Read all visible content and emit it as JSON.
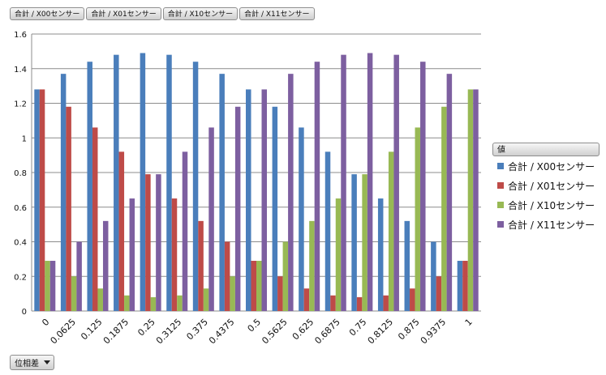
{
  "field_buttons": [
    "合計 / X00センサー",
    "合計 / X01センサー",
    "合計 / X10センサー",
    "合計 / X11センサー"
  ],
  "axis_field_button": "位相差",
  "legend": {
    "title": "値"
  },
  "colors": {
    "X00": "#4a7ebb",
    "X01": "#be4b48",
    "X10": "#98b954",
    "X11": "#7d5fa0"
  },
  "chart_data": {
    "type": "bar",
    "categories": [
      "0",
      "0.0625",
      "0.125",
      "0.1875",
      "0.25",
      "0.3125",
      "0.375",
      "0.4375",
      "0.5",
      "0.5625",
      "0.625",
      "0.6875",
      "0.75",
      "0.8125",
      "0.875",
      "0.9375",
      "1"
    ],
    "ylim": [
      0,
      1.6
    ],
    "yticks": [
      "0",
      "0.2",
      "0.4",
      "0.6",
      "0.8",
      "1",
      "1.2",
      "1.4",
      "1.6"
    ],
    "grid": true,
    "legend_position": "right",
    "series": [
      {
        "name": "合計 / X00センサー",
        "values": [
          1.28,
          1.37,
          1.44,
          1.48,
          1.49,
          1.48,
          1.44,
          1.37,
          1.28,
          1.18,
          1.06,
          0.92,
          0.79,
          0.65,
          0.52,
          0.4,
          0.29
        ]
      },
      {
        "name": "合計 / X01センサー",
        "values": [
          1.28,
          1.18,
          1.06,
          0.92,
          0.79,
          0.65,
          0.52,
          0.4,
          0.29,
          0.2,
          0.13,
          0.09,
          0.08,
          0.09,
          0.13,
          0.2,
          0.29
        ]
      },
      {
        "name": "合計 / X10センサー",
        "values": [
          0.29,
          0.2,
          0.13,
          0.09,
          0.08,
          0.09,
          0.13,
          0.2,
          0.29,
          0.4,
          0.52,
          0.65,
          0.79,
          0.92,
          1.06,
          1.18,
          1.28
        ]
      },
      {
        "name": "合計 / X11センサー",
        "values": [
          0.29,
          0.4,
          0.52,
          0.65,
          0.79,
          0.92,
          1.06,
          1.18,
          1.28,
          1.37,
          1.44,
          1.48,
          1.49,
          1.48,
          1.44,
          1.37,
          1.28
        ]
      }
    ]
  }
}
